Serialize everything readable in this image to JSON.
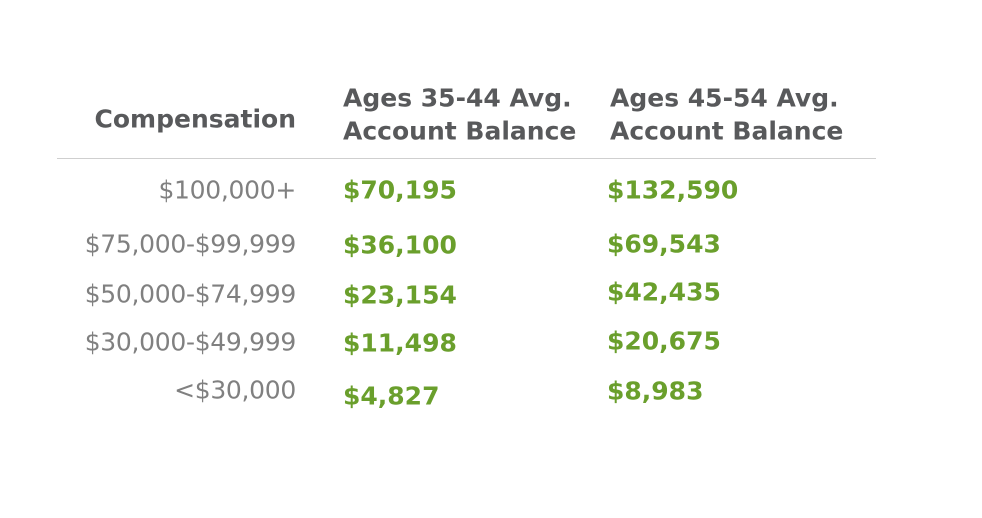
{
  "table": {
    "headers": [
      "Compensation",
      [
        "Ages 35-44 Avg.",
        "Account Balance"
      ],
      [
        "Ages 45-54 Avg.",
        "Account Balance"
      ]
    ],
    "rows": [
      [
        "$100,000+",
        "$70,195",
        "$132,590"
      ],
      [
        "$75,000-$99,999",
        "$36,100",
        "$69,543"
      ],
      [
        "$50,000-$74,999",
        "$23,154",
        "$42,435"
      ],
      [
        "$30,000-$49,999",
        "$11,498",
        "$20,675"
      ],
      [
        "<$30,000",
        "$4,827",
        "$8,983"
      ]
    ]
  }
}
